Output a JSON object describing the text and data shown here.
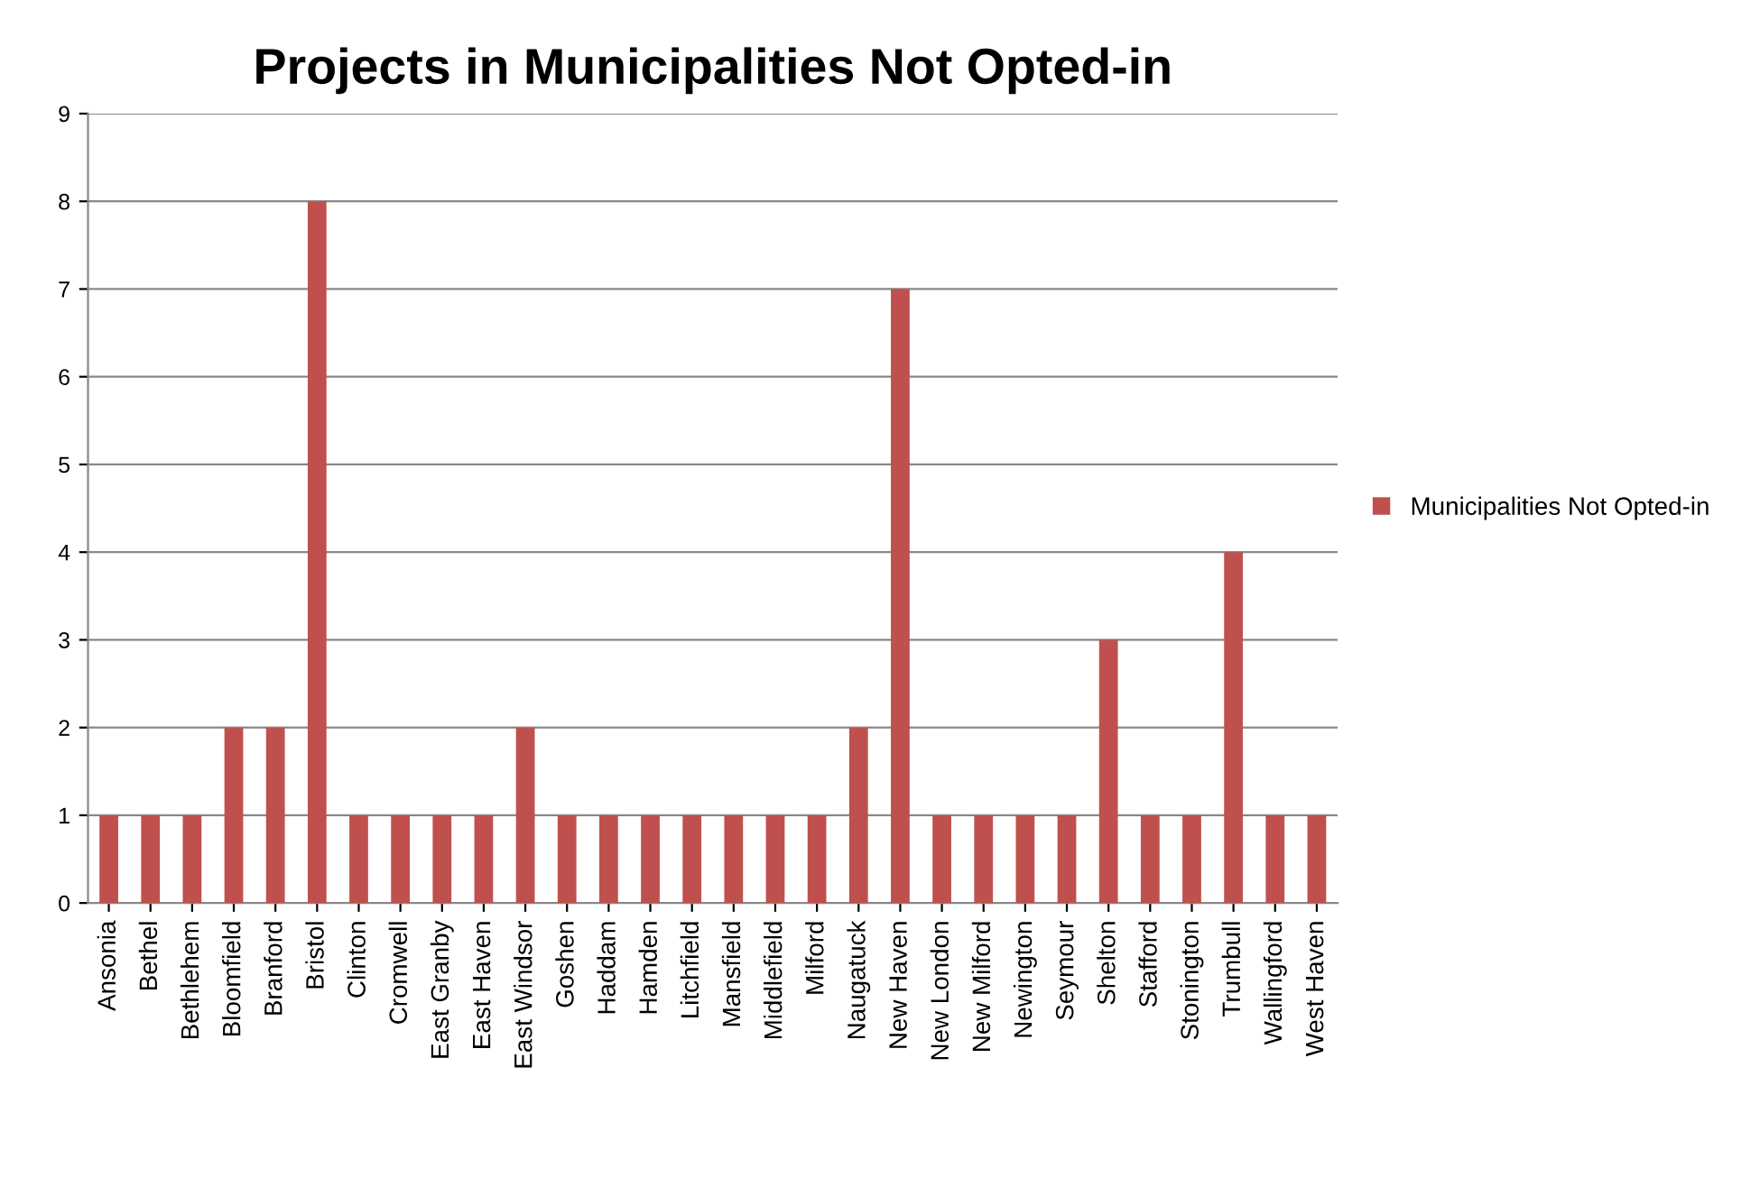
{
  "chart_data": {
    "type": "bar",
    "title": "Projects in Municipalities Not Opted-in",
    "categories": [
      "Ansonia",
      "Bethel",
      "Bethlehem",
      "Bloomfield",
      "Branford",
      "Bristol",
      "Clinton",
      "Cromwell",
      "East Granby",
      "East Haven",
      "East Windsor",
      "Goshen",
      "Haddam",
      "Hamden",
      "Litchfield",
      "Mansfield",
      "Middlefield",
      "Milford",
      "Naugatuck",
      "New Haven",
      "New London",
      "New Milford",
      "Newington",
      "Seymour",
      "Shelton",
      "Stafford",
      "Stonington",
      "Trumbull",
      "Wallingford",
      "West Haven"
    ],
    "series": [
      {
        "name": "Municipalities Not Opted-in",
        "color": "#c0504d",
        "values": [
          1,
          1,
          1,
          2,
          2,
          8,
          1,
          1,
          1,
          1,
          2,
          1,
          1,
          1,
          1,
          1,
          1,
          1,
          2,
          7,
          1,
          1,
          1,
          1,
          3,
          1,
          1,
          4,
          1,
          1
        ]
      }
    ],
    "ylim": [
      0,
      9
    ],
    "yticks": [
      0,
      1,
      2,
      3,
      4,
      5,
      6,
      7,
      8,
      9
    ],
    "grid": "y",
    "legend": "right"
  }
}
